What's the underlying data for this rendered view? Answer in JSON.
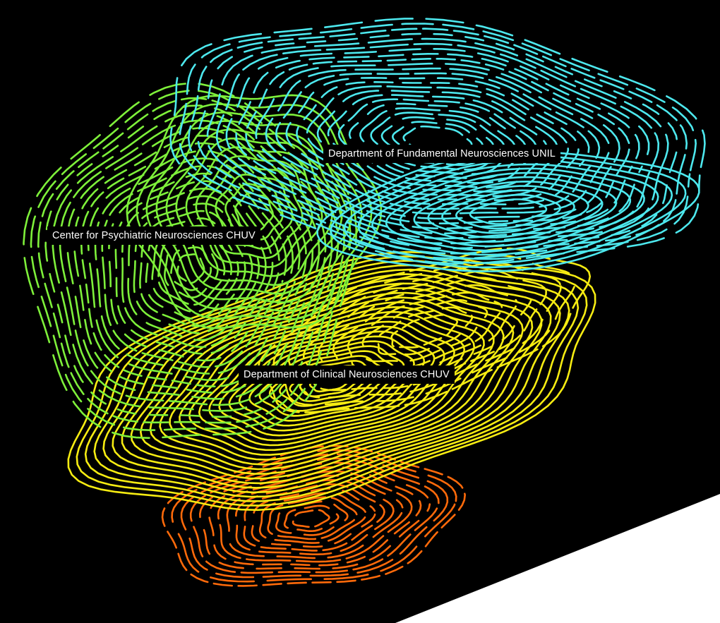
{
  "labels": {
    "fundamental": "Department of Fundamental Neurosciences UNIL",
    "psychiatric": "Center for Psychiatric Neurosciences CHUV",
    "clinical": "Department of Clinical Neurosciences CHUV"
  },
  "colors": {
    "background": "#000000",
    "fundamental_region": "#4de8ee",
    "psychiatric_region": "#7ef03a",
    "clinical_region": "#f6ec12",
    "lower_region": "#ff6a0a",
    "corner": "#ffffff"
  }
}
